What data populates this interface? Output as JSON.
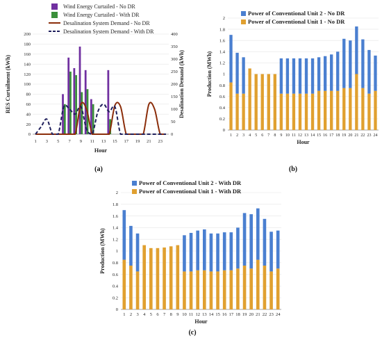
{
  "chart_data": [
    {
      "panel": "(a)",
      "type": "bar",
      "x": [
        1,
        2,
        3,
        4,
        5,
        6,
        7,
        8,
        9,
        10,
        11,
        12,
        13,
        14,
        15,
        16,
        17,
        18,
        19,
        20,
        21,
        22,
        23,
        24
      ],
      "xticks": [
        "1",
        "3",
        "5",
        "7",
        "9",
        "11",
        "13",
        "15",
        "17",
        "19",
        "21",
        "23"
      ],
      "xlabel": "Hour",
      "ylabel": "RES Curtailment (kWh)",
      "ylim": [
        0,
        200
      ],
      "yticks": [
        "0",
        "20",
        "40",
        "60",
        "80",
        "100",
        "120",
        "140",
        "160",
        "180",
        "200"
      ],
      "y2label": "Desalination Demand (kWh)",
      "y2lim": [
        0,
        400
      ],
      "y2ticks": [
        "0",
        "50",
        "100",
        "150",
        "200",
        "250",
        "300",
        "350",
        "400"
      ],
      "series": [
        {
          "name": "Wind Energy Curtailed - No DR",
          "axis": "left",
          "kind": "bar",
          "color": "#7030A0",
          "values": [
            0,
            0,
            0,
            0,
            0,
            80,
            153,
            132,
            175,
            128,
            70,
            0,
            0,
            128,
            0,
            0,
            0,
            0,
            0,
            0,
            0,
            0,
            0,
            0
          ]
        },
        {
          "name": "Wind Energy Curtailed - With DR",
          "axis": "left",
          "kind": "bar",
          "color": "#3a8f3a",
          "values": [
            0,
            0,
            0,
            0,
            0,
            60,
            125,
            118,
            84,
            90,
            60,
            0,
            0,
            30,
            0,
            0,
            0,
            0,
            0,
            0,
            0,
            0,
            0,
            0
          ]
        },
        {
          "name": "Desalination System Demand - No DR",
          "axis": "right",
          "kind": "line",
          "color": "#8B2D0A",
          "dash": false,
          "values": [
            0,
            0,
            0,
            0,
            0,
            0,
            0,
            0,
            120,
            100,
            0,
            0,
            0,
            0,
            115,
            110,
            0,
            0,
            0,
            0,
            120,
            100,
            0,
            0
          ]
        },
        {
          "name": "Desalination System Demand - With DR",
          "axis": "right",
          "kind": "line",
          "color": "#1f1f5c",
          "dash": true,
          "values": [
            0,
            30,
            60,
            0,
            0,
            110,
            100,
            80,
            110,
            20,
            0,
            90,
            120,
            90,
            110,
            0,
            0,
            0,
            0,
            0,
            0,
            0,
            0,
            0
          ]
        }
      ],
      "legend": "top"
    },
    {
      "panel": "(b)",
      "type": "bar",
      "stacked": true,
      "categories": [
        "1",
        "2",
        "3",
        "4",
        "5",
        "6",
        "7",
        "8",
        "9",
        "10",
        "11",
        "12",
        "13",
        "14",
        "15",
        "16",
        "17",
        "18",
        "19",
        "20",
        "21",
        "22",
        "23",
        "24"
      ],
      "xlabel": "Hour",
      "ylabel": "Production (MWh)",
      "ylim": [
        0,
        2
      ],
      "yticks": [
        "0",
        "0.2",
        "0.4",
        "0.6",
        "0.8",
        "1",
        "1.2",
        "1.4",
        "1.6",
        "1.8",
        "2"
      ],
      "series": [
        {
          "name": "Power of Conventional Unit 1 - No DR",
          "color": "#E0A030",
          "values": [
            0.85,
            0.65,
            0.65,
            1.1,
            1.0,
            1.0,
            1.0,
            1.0,
            0.65,
            0.65,
            0.65,
            0.65,
            0.65,
            0.65,
            0.7,
            0.7,
            0.7,
            0.7,
            0.75,
            0.75,
            1.0,
            0.75,
            0.65,
            0.7
          ]
        },
        {
          "name": "Power of Conventional Unit 2 - No DR",
          "color": "#4A7FD0",
          "values": [
            0.85,
            0.73,
            0.65,
            0.0,
            0.0,
            0.0,
            0.0,
            0.0,
            0.63,
            0.63,
            0.63,
            0.63,
            0.63,
            0.63,
            0.6,
            0.62,
            0.65,
            0.7,
            0.88,
            0.85,
            0.85,
            0.87,
            0.78,
            0.63
          ]
        }
      ],
      "legend": "top"
    },
    {
      "panel": "(c)",
      "type": "bar",
      "stacked": true,
      "categories": [
        "1",
        "2",
        "3",
        "4",
        "5",
        "6",
        "7",
        "8",
        "9",
        "10",
        "11",
        "12",
        "13",
        "14",
        "15",
        "16",
        "17",
        "18",
        "19",
        "20",
        "21",
        "22",
        "23",
        "24"
      ],
      "xlabel": "Hour",
      "ylabel": "Production (MWh)",
      "ylim": [
        0,
        2
      ],
      "yticks": [
        "0",
        "0.2",
        "0.4",
        "0.6",
        "0.8",
        "1",
        "1.2",
        "1.4",
        "1.6",
        "1.8",
        "2"
      ],
      "series": [
        {
          "name": "Power of Conventional Unit 1 - With DR",
          "color": "#E0A030",
          "values": [
            0.85,
            0.75,
            0.65,
            1.1,
            1.05,
            1.05,
            1.06,
            1.08,
            1.1,
            0.65,
            0.65,
            0.67,
            0.67,
            0.65,
            0.65,
            0.67,
            0.67,
            0.7,
            0.75,
            0.7,
            0.85,
            0.75,
            0.65,
            0.7
          ]
        },
        {
          "name": "Power of Conventional Unit 2 - With DR",
          "color": "#4A7FD0",
          "values": [
            0.85,
            0.68,
            0.65,
            0.0,
            0.0,
            0.0,
            0.0,
            0.0,
            0.0,
            0.62,
            0.66,
            0.68,
            0.7,
            0.65,
            0.65,
            0.65,
            0.65,
            0.7,
            0.9,
            0.93,
            0.88,
            0.8,
            0.68,
            0.65
          ]
        }
      ],
      "legend": "top"
    }
  ]
}
